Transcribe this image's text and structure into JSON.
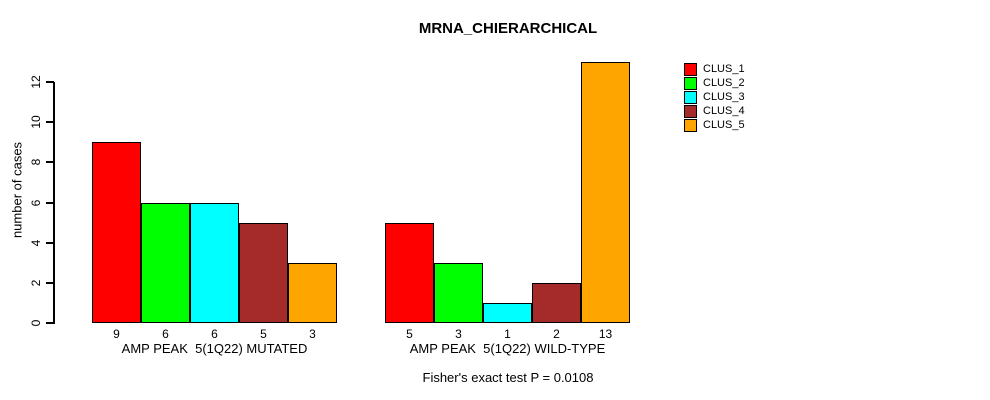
{
  "page": {
    "background": "#ffffff",
    "text_color": "#000000",
    "axis_color": "#000000"
  },
  "chart_data": {
    "type": "bar",
    "title": "MRNA_CHIERARCHICAL",
    "ylabel": "number of cases",
    "xlabel": "",
    "ylim": [
      0,
      12
    ],
    "yticks": [
      0,
      2,
      4,
      6,
      8,
      10,
      12
    ],
    "grid": false,
    "legend_position": "top-right",
    "legend": [
      {
        "label": "CLUS_1",
        "color": "#FF0000"
      },
      {
        "label": "CLUS_2",
        "color": "#00FF00"
      },
      {
        "label": "CLUS_3",
        "color": "#00FFFF"
      },
      {
        "label": "CLUS_4",
        "color": "#A52A2A"
      },
      {
        "label": "CLUS_5",
        "color": "#FFA500"
      }
    ],
    "groups": [
      {
        "label": "AMP PEAK  5(1Q22) MUTATED",
        "values": [
          9,
          6,
          6,
          5,
          3
        ],
        "bar_labels": [
          "9",
          "6",
          "6",
          "5",
          "3"
        ]
      },
      {
        "label": "AMP PEAK  5(1Q22) WILD-TYPE",
        "values": [
          5,
          3,
          1,
          2,
          13
        ],
        "bar_labels": [
          "5",
          "3",
          "1",
          "2",
          "13"
        ]
      }
    ],
    "footnote": "Fisher's exact test P = 0.0108"
  }
}
